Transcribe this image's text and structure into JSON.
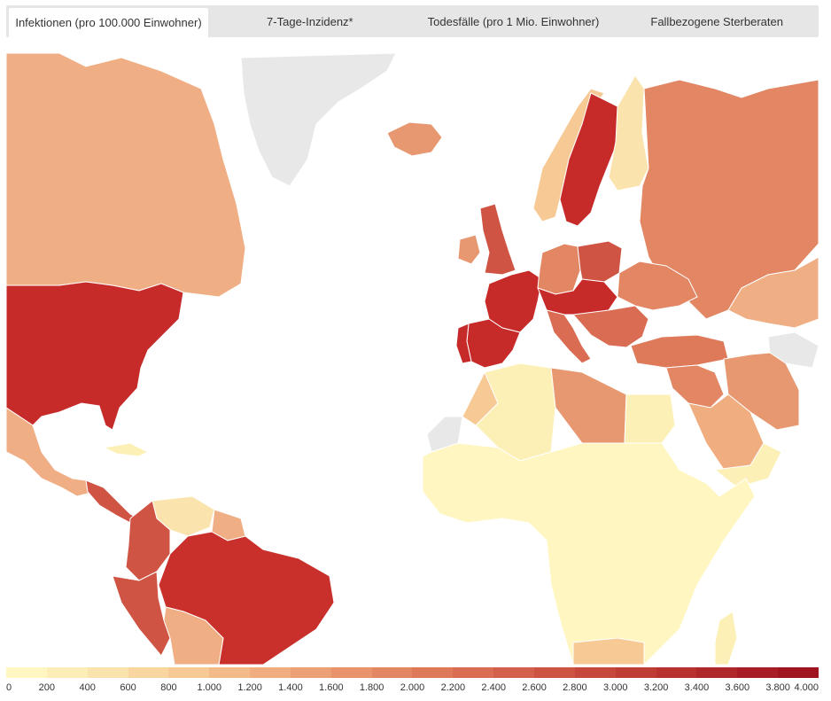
{
  "tabs": [
    {
      "label": "Infektionen (pro 100.000 Einwohner)",
      "active": true
    },
    {
      "label": "7-Tage-Inzidenz*",
      "active": false
    },
    {
      "label": "Todesfälle (pro 1 Mio. Einwohner)",
      "active": false
    },
    {
      "label": "Fallbezogene Sterberaten",
      "active": false
    }
  ],
  "legend": {
    "ticks": [
      "0",
      "200",
      "400",
      "600",
      "800",
      "1.000",
      "1.200",
      "1.400",
      "1.600",
      "1.800",
      "2.000",
      "2.200",
      "2.400",
      "2.600",
      "2.800",
      "3.000",
      "3.200",
      "3.400",
      "3.600",
      "3.800",
      "4.000"
    ],
    "colors": [
      "#fff6c2",
      "#fdeeb8",
      "#fbe3ad",
      "#f9d6a0",
      "#f6c995",
      "#f3bb8a",
      "#f0ae80",
      "#eca076",
      "#e8936c",
      "#e38663",
      "#de795a",
      "#d96c52",
      "#d3604a",
      "#cd5443",
      "#c6483c",
      "#bf3c35",
      "#b8312f",
      "#b0272a",
      "#a81d25",
      "#a01420"
    ],
    "no_data_color": "#e8e8e8"
  },
  "map": {
    "regions": [
      {
        "name": "greenland",
        "color": "#e8e8e8"
      },
      {
        "name": "canada",
        "color": "#efae84"
      },
      {
        "name": "usa",
        "color": "#c62b2a"
      },
      {
        "name": "mexico",
        "color": "#efae84"
      },
      {
        "name": "cuba",
        "color": "#fdf0b7"
      },
      {
        "name": "central-america",
        "color": "#d05444"
      },
      {
        "name": "venezuela",
        "color": "#fbe3ad"
      },
      {
        "name": "colombia",
        "color": "#d05444"
      },
      {
        "name": "brazil",
        "color": "#c9302b"
      },
      {
        "name": "peru",
        "color": "#d05444"
      },
      {
        "name": "bolivia",
        "color": "#efae84"
      },
      {
        "name": "guyana",
        "color": "#efae84"
      },
      {
        "name": "iceland",
        "color": "#e79871"
      },
      {
        "name": "norway",
        "color": "#f6c995"
      },
      {
        "name": "sweden",
        "color": "#c62b2a"
      },
      {
        "name": "finland",
        "color": "#fbe3ad"
      },
      {
        "name": "russia",
        "color": "#e38663"
      },
      {
        "name": "uk",
        "color": "#d05444"
      },
      {
        "name": "ireland",
        "color": "#e79871"
      },
      {
        "name": "france",
        "color": "#c62b2a"
      },
      {
        "name": "spain",
        "color": "#c62b2a"
      },
      {
        "name": "portugal",
        "color": "#c62b2a"
      },
      {
        "name": "germany",
        "color": "#e38663"
      },
      {
        "name": "poland",
        "color": "#d05444"
      },
      {
        "name": "central-europe",
        "color": "#c62b2a"
      },
      {
        "name": "balkans",
        "color": "#d96c52"
      },
      {
        "name": "italy",
        "color": "#d96c52"
      },
      {
        "name": "ukraine",
        "color": "#e38663"
      },
      {
        "name": "turkey",
        "color": "#de795a"
      },
      {
        "name": "kazakhstan",
        "color": "#efae84"
      },
      {
        "name": "iran",
        "color": "#e79871"
      },
      {
        "name": "saudi-arabia",
        "color": "#f0ae80"
      },
      {
        "name": "middle-east",
        "color": "#e38663"
      },
      {
        "name": "morocco",
        "color": "#f6c995"
      },
      {
        "name": "algeria",
        "color": "#fdf0b7"
      },
      {
        "name": "libya",
        "color": "#e79871"
      },
      {
        "name": "egypt",
        "color": "#fdf0b7"
      },
      {
        "name": "sub-saharan-africa",
        "color": "#fff6c2"
      },
      {
        "name": "western-sahara",
        "color": "#e8e8e8"
      },
      {
        "name": "south-africa",
        "color": "#f6c995"
      },
      {
        "name": "madagascar",
        "color": "#fdf0b7"
      },
      {
        "name": "yemen-oman",
        "color": "#fdf0b7"
      },
      {
        "name": "turkmenistan",
        "color": "#e8e8e8"
      }
    ]
  }
}
